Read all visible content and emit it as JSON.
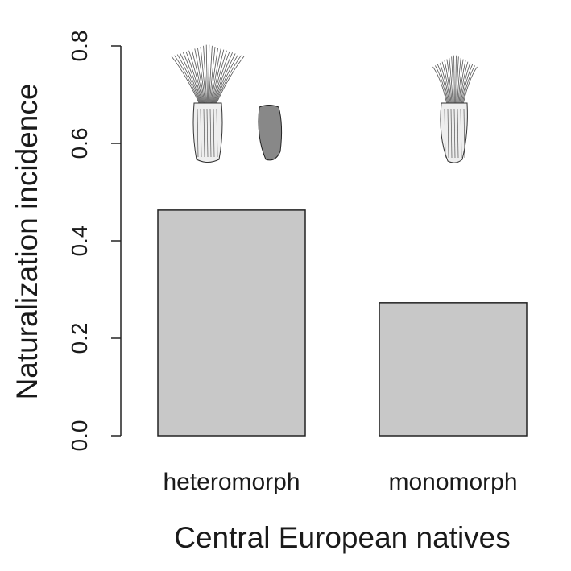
{
  "chart_data": {
    "type": "bar",
    "categories": [
      "heteromorph",
      "monomorph"
    ],
    "values": [
      0.463,
      0.273
    ],
    "title": "",
    "xlabel": "Central European natives",
    "ylabel": "Naturalization incidence",
    "ylim": [
      0,
      0.8
    ],
    "yticks": [
      "0.0",
      "0.2",
      "0.4",
      "0.6",
      "0.8"
    ],
    "bar_color": "#c8c8c8",
    "grid": false,
    "illustrations": [
      "heteromorph achenes (pappus-bearing and epappose)",
      "monomorph achene with pappus"
    ]
  }
}
